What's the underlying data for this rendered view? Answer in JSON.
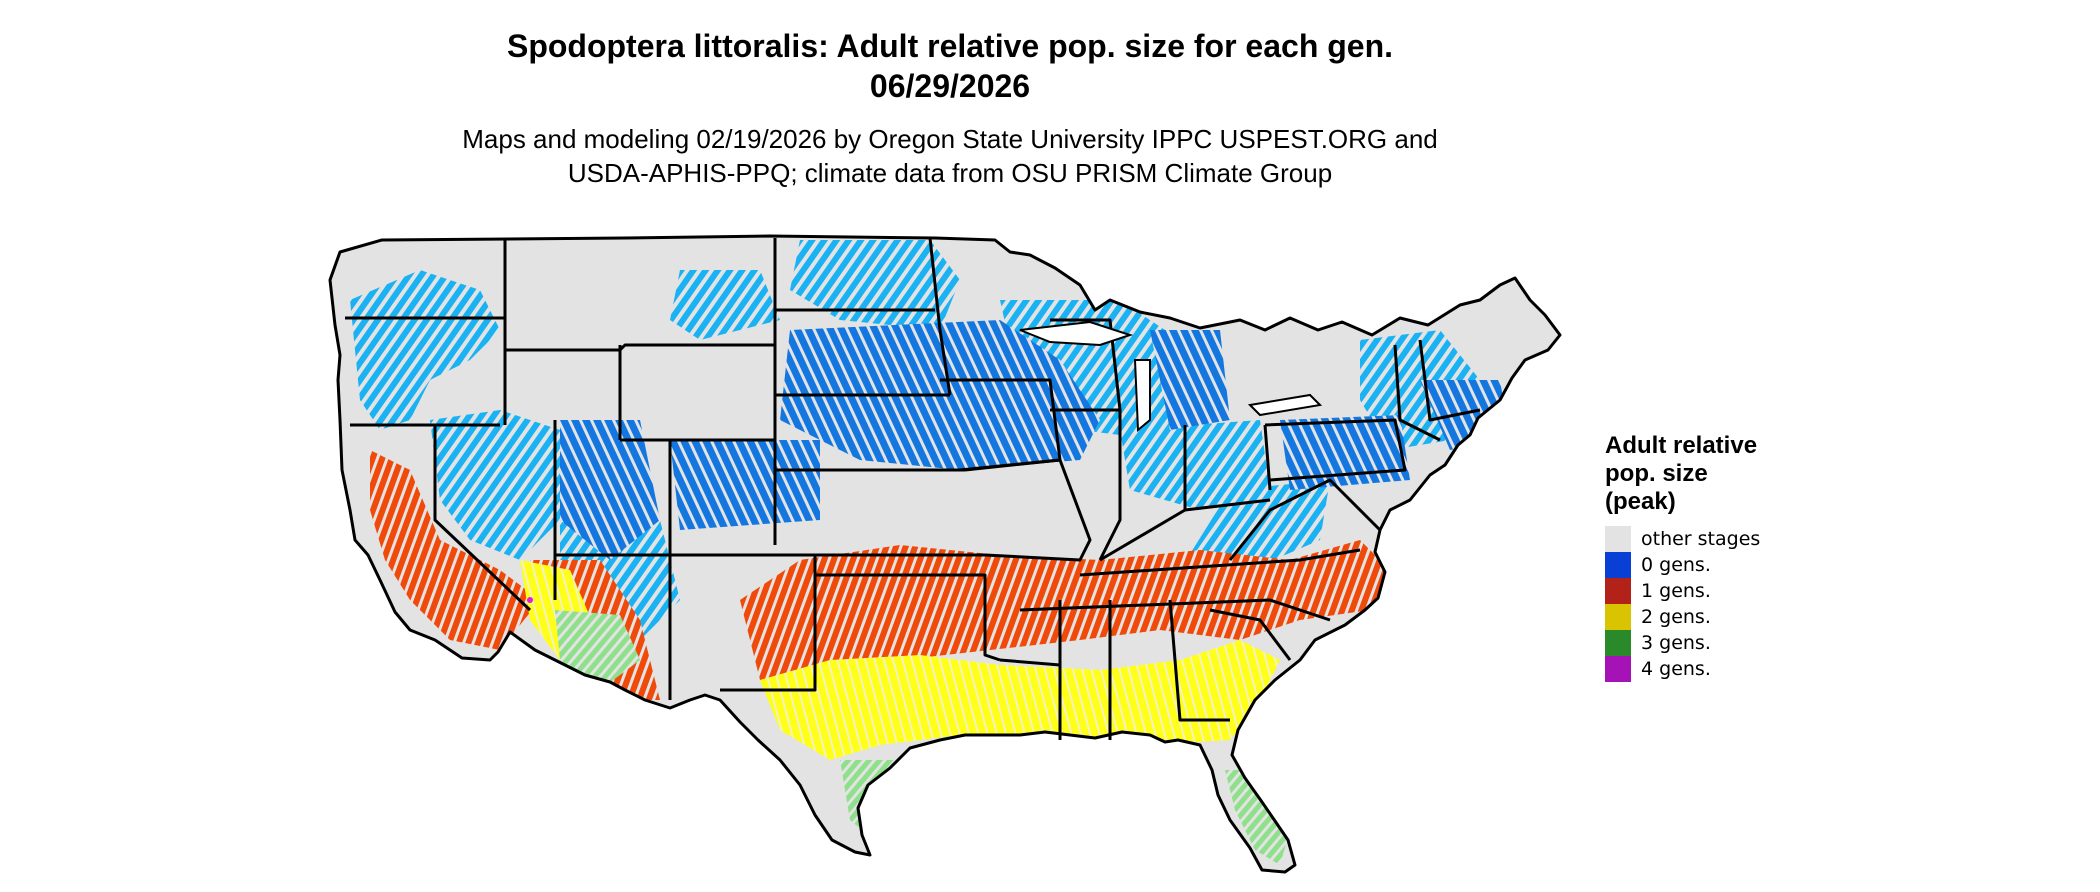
{
  "title": {
    "line1": "Spodoptera littoralis: Adult relative pop. size for each gen.",
    "line2": "06/29/2026"
  },
  "subtitle": {
    "line1": "Maps and modeling 02/19/2026 by Oregon State University IPPC USPEST.ORG and",
    "line2": "USDA-APHIS-PPQ; climate data from OSU PRISM Climate Group"
  },
  "legend": {
    "title_lines": [
      "Adult relative",
      "pop. size",
      "(peak)"
    ],
    "items": [
      {
        "label": "other stages",
        "color": "#e3e3e3"
      },
      {
        "label": "0 gens.",
        "color": "#0a3fd6"
      },
      {
        "label": "1 gens.",
        "color": "#b22218"
      },
      {
        "label": "2 gens.",
        "color": "#d8c400"
      },
      {
        "label": "3 gens.",
        "color": "#2a8a2a"
      },
      {
        "label": "4 gens.",
        "color": "#a512b5"
      }
    ]
  },
  "map": {
    "region": "contiguous United States",
    "boundaries": "state",
    "colors": {
      "base": "#e3e3e3",
      "zone_0_gens_light": "#1ab2f2",
      "zone_0_gens_dark": "#1477e0",
      "zone_1_gens": "#f04a0a",
      "zone_2_gens": "#ffff19",
      "zone_3_gens": "#8fe08a",
      "zone_4_gens": "#e01ae0",
      "border": "#000000"
    }
  }
}
